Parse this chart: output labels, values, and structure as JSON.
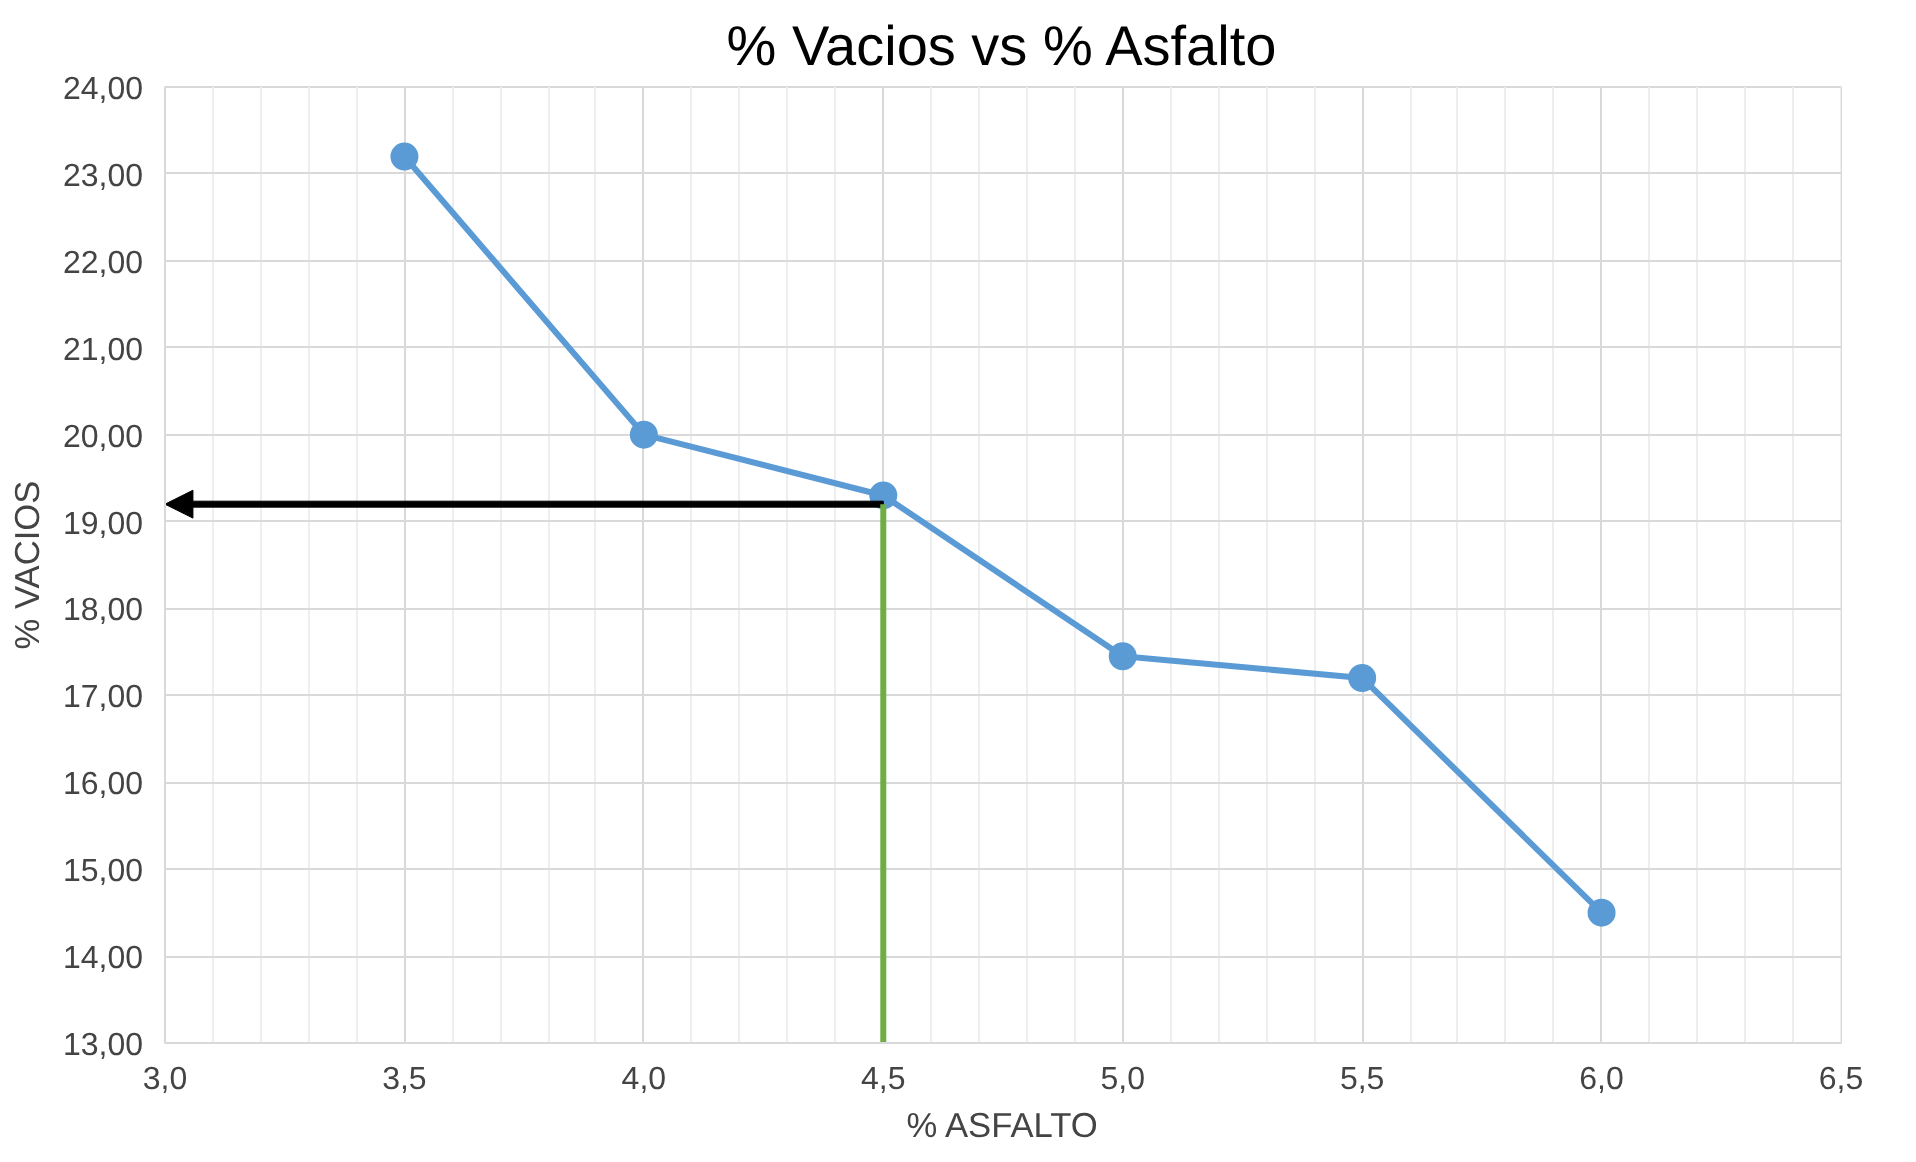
{
  "chart_data": {
    "type": "line",
    "title": "% Vacios vs % Asfalto",
    "xlabel": "% ASFALTO",
    "ylabel": "% VACIOS",
    "x": [
      3.5,
      4.0,
      4.5,
      5.0,
      5.5,
      6.0
    ],
    "series": [
      {
        "color": "#5b9bd5",
        "values": [
          23.2,
          20.0,
          19.3,
          17.45,
          17.2,
          14.5
        ]
      }
    ],
    "xlim": [
      3.0,
      6.5
    ],
    "xticks": [
      {
        "value": 3.0,
        "label": "3,0"
      },
      {
        "value": 3.5,
        "label": "3,5"
      },
      {
        "value": 4.0,
        "label": "4,0"
      },
      {
        "value": 4.5,
        "label": "4,5"
      },
      {
        "value": 5.0,
        "label": "5,0"
      },
      {
        "value": 5.5,
        "label": "5,5"
      },
      {
        "value": 6.0,
        "label": "6,0"
      },
      {
        "value": 6.5,
        "label": "6,5"
      }
    ],
    "ylim": [
      13,
      24
    ],
    "yticks": [
      {
        "value": 13,
        "label": "13,00"
      },
      {
        "value": 14,
        "label": "14,00"
      },
      {
        "value": 15,
        "label": "15,00"
      },
      {
        "value": 16,
        "label": "16,00"
      },
      {
        "value": 17,
        "label": "17,00"
      },
      {
        "value": 18,
        "label": "18,00"
      },
      {
        "value": 19,
        "label": "19,00"
      },
      {
        "value": 20,
        "label": "20,00"
      },
      {
        "value": 21,
        "label": "21,00"
      },
      {
        "value": 22,
        "label": "22,00"
      },
      {
        "value": 23,
        "label": "23,00"
      },
      {
        "value": 24,
        "label": "24,00"
      }
    ],
    "ref_lines": [
      {
        "axis": "y",
        "value": 19.2,
        "color": "#000000"
      },
      {
        "axis": "x",
        "value": 4.5,
        "color": "#70ad47"
      }
    ],
    "grid": true,
    "marker": "circle",
    "line_style": "solid"
  }
}
